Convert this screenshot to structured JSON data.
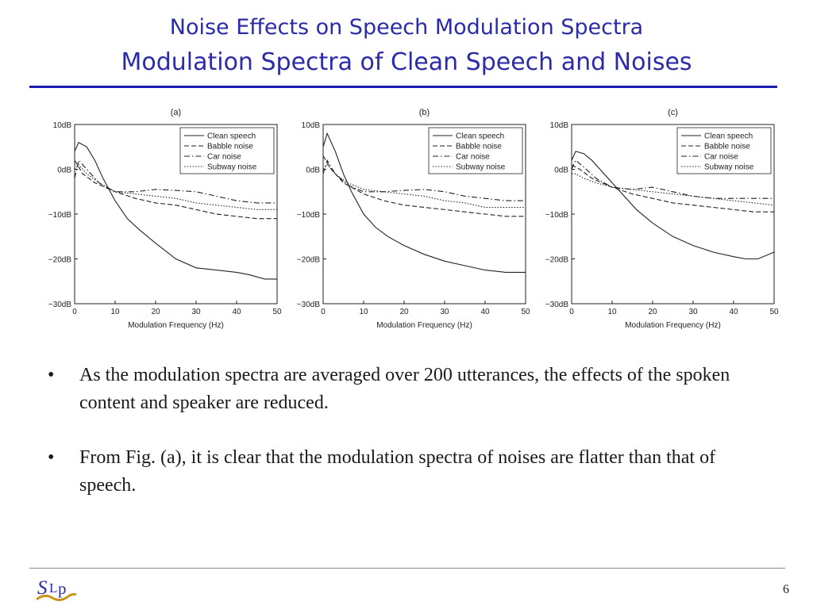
{
  "slide": {
    "title": "Noise Effects on Speech Modulation Spectra",
    "subtitle": "Modulation Spectra of Clean Speech and Noises",
    "page_number": "6",
    "bullets": [
      "As the modulation spectra are averaged over 200 utterances, the effects of the spoken content and speaker are reduced.",
      "From Fig. (a), it is clear that the modulation spectra of noises are flatter than that of speech."
    ],
    "logo_icon": "slp-logo-icon",
    "accent_color": "#2b2ba8"
  },
  "chart_data": [
    {
      "type": "line",
      "title": "(a)",
      "xlabel": "Modulation Frequency (Hz)",
      "ylabel": "",
      "xlim": [
        0,
        50
      ],
      "ylim": [
        -30,
        10
      ],
      "xticks": [
        "0",
        "10",
        "20",
        "30",
        "40",
        "50"
      ],
      "yticks": [
        "10dB",
        "0dB",
        "−10dB",
        "−20dB",
        "−30dB"
      ],
      "legend_position": "top-right",
      "series": [
        {
          "name": "Clean speech",
          "style": "solid",
          "x": [
            0,
            1,
            3,
            5,
            7,
            10,
            13,
            16,
            20,
            25,
            30,
            35,
            40,
            43,
            47,
            50
          ],
          "y": [
            4,
            6,
            5,
            2,
            -2,
            -7,
            -11,
            -13.5,
            -16.5,
            -20,
            -22,
            -22.5,
            -23,
            -23.5,
            -24.5,
            -24.5
          ]
        },
        {
          "name": "Babble noise",
          "style": "dashed",
          "x": [
            0,
            2,
            5,
            10,
            15,
            20,
            25,
            30,
            35,
            40,
            45,
            50
          ],
          "y": [
            2,
            -1,
            -3,
            -5,
            -6.5,
            -7.5,
            -8,
            -9,
            -10,
            -10.5,
            -11,
            -11
          ]
        },
        {
          "name": "Car noise",
          "style": "dashdot",
          "x": [
            0,
            1,
            3,
            6,
            10,
            15,
            20,
            25,
            30,
            35,
            40,
            45,
            50
          ],
          "y": [
            -2,
            2,
            0,
            -3,
            -5,
            -5,
            -4.5,
            -4.7,
            -5,
            -6,
            -7,
            -7.5,
            -7.5
          ]
        },
        {
          "name": "Subway noise",
          "style": "dotted",
          "x": [
            0,
            1,
            3,
            6,
            10,
            15,
            20,
            25,
            30,
            35,
            40,
            45,
            50
          ],
          "y": [
            0,
            1,
            -1,
            -3,
            -5,
            -5.5,
            -6,
            -6.5,
            -7.5,
            -8,
            -8.5,
            -9,
            -9
          ]
        }
      ]
    },
    {
      "type": "line",
      "title": "(b)",
      "xlabel": "Modulation Frequency (Hz)",
      "ylabel": "",
      "xlim": [
        0,
        50
      ],
      "ylim": [
        -30,
        10
      ],
      "xticks": [
        "0",
        "10",
        "20",
        "30",
        "40",
        "50"
      ],
      "yticks": [
        "10dB",
        "0dB",
        "−10dB",
        "−20dB",
        "−30dB"
      ],
      "legend_position": "top-right",
      "series": [
        {
          "name": "Clean speech",
          "style": "solid",
          "x": [
            0,
            1,
            3,
            5,
            7,
            10,
            13,
            16,
            20,
            25,
            30,
            35,
            40,
            45,
            50
          ],
          "y": [
            5,
            8,
            4,
            -1,
            -5,
            -10,
            -13,
            -15,
            -17,
            -19,
            -20.5,
            -21.5,
            -22.5,
            -23,
            -23
          ]
        },
        {
          "name": "Babble noise",
          "style": "dashed",
          "x": [
            0,
            2,
            5,
            10,
            15,
            20,
            25,
            30,
            35,
            40,
            45,
            50
          ],
          "y": [
            3,
            0,
            -3,
            -5.5,
            -7,
            -8,
            -8.5,
            -9,
            -9.5,
            -10,
            -10.5,
            -10.5
          ]
        },
        {
          "name": "Car noise",
          "style": "dashdot",
          "x": [
            0,
            1,
            3,
            6,
            10,
            15,
            20,
            25,
            30,
            35,
            40,
            45,
            50
          ],
          "y": [
            -1,
            2,
            -1,
            -3.5,
            -5,
            -5,
            -4.7,
            -4.5,
            -5,
            -6,
            -6.5,
            -7,
            -7
          ]
        },
        {
          "name": "Subway noise",
          "style": "dotted",
          "x": [
            0,
            1,
            3,
            6,
            10,
            15,
            20,
            25,
            30,
            35,
            40,
            45,
            50
          ],
          "y": [
            0,
            1,
            -1,
            -3,
            -4.5,
            -5,
            -5.5,
            -6,
            -7,
            -7.5,
            -8.5,
            -8.5,
            -8.5
          ]
        }
      ]
    },
    {
      "type": "line",
      "title": "(c)",
      "xlabel": "Modulation Frequency (Hz)",
      "ylabel": "",
      "xlim": [
        0,
        50
      ],
      "ylim": [
        -30,
        10
      ],
      "xticks": [
        "0",
        "10",
        "20",
        "30",
        "40",
        "50"
      ],
      "yticks": [
        "10dB",
        "0dB",
        "−10dB",
        "−20dB",
        "−30dB"
      ],
      "legend_position": "top-right",
      "series": [
        {
          "name": "Clean speech",
          "style": "solid",
          "x": [
            0,
            1,
            3,
            5,
            7,
            10,
            13,
            16,
            20,
            25,
            30,
            35,
            40,
            43,
            46,
            50
          ],
          "y": [
            2,
            4,
            3.5,
            2,
            0,
            -3,
            -6,
            -9,
            -12,
            -15,
            -17,
            -18.5,
            -19.5,
            -20,
            -20,
            -18.5
          ]
        },
        {
          "name": "Babble noise",
          "style": "dashed",
          "x": [
            0,
            2,
            5,
            10,
            15,
            20,
            25,
            30,
            35,
            40,
            45,
            50
          ],
          "y": [
            1,
            0,
            -2,
            -4,
            -5.5,
            -6.5,
            -7.5,
            -8,
            -8.5,
            -9,
            -9.5,
            -9.5
          ]
        },
        {
          "name": "Car noise",
          "style": "dashdot",
          "x": [
            0,
            1,
            3,
            6,
            10,
            15,
            20,
            25,
            30,
            35,
            40,
            45,
            50
          ],
          "y": [
            0,
            2,
            0.5,
            -2,
            -4,
            -4.5,
            -4,
            -5,
            -6,
            -6.5,
            -6.5,
            -6.5,
            -6.5
          ]
        },
        {
          "name": "Subway noise",
          "style": "dotted",
          "x": [
            0,
            1,
            3,
            6,
            10,
            15,
            20,
            25,
            30,
            35,
            40,
            45,
            50
          ],
          "y": [
            -1,
            -1,
            -2,
            -3,
            -4,
            -4.5,
            -5,
            -5.5,
            -6,
            -6.5,
            -7,
            -7.5,
            -8
          ]
        }
      ]
    }
  ]
}
